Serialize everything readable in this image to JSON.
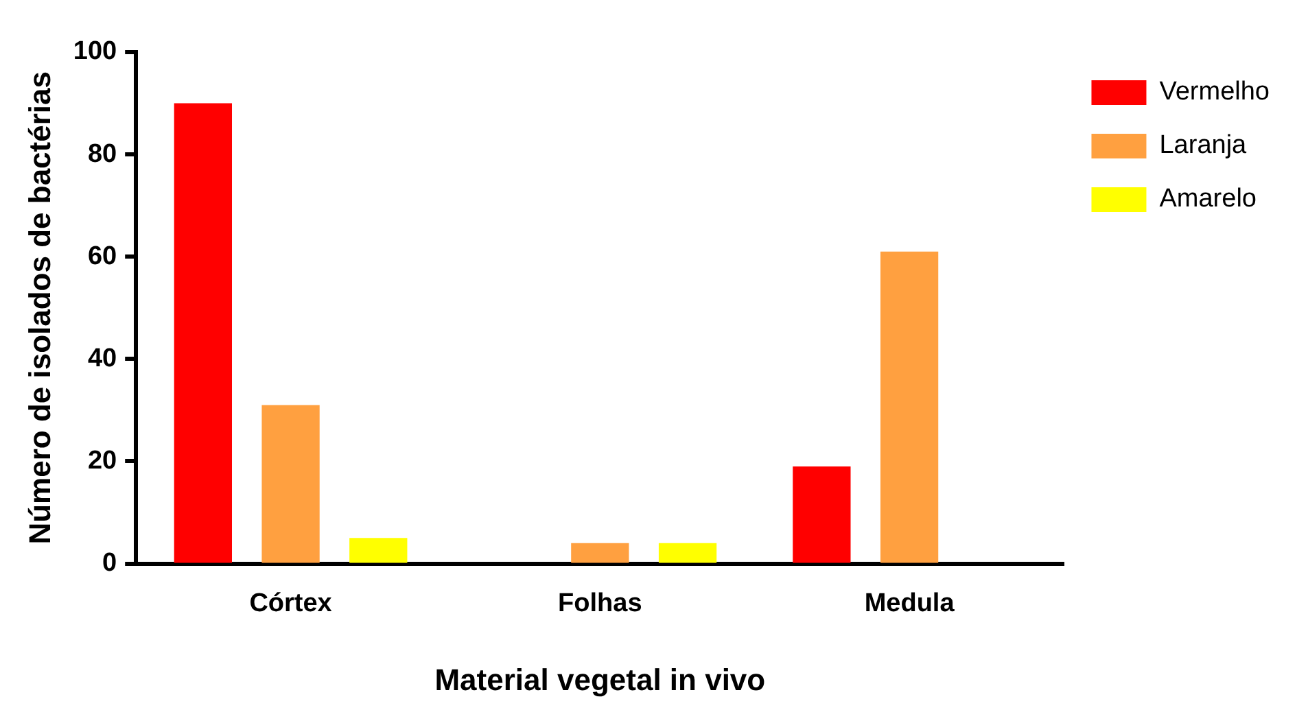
{
  "chart_data": {
    "type": "bar",
    "xlabel": "Material vegetal in vivo",
    "ylabel": "Número de isolados de bactérias",
    "categories": [
      "Córtex",
      "Folhas",
      "Medula"
    ],
    "series": [
      {
        "name": "Vermelho",
        "color": "#ff0000",
        "values": [
          90,
          0,
          19
        ]
      },
      {
        "name": "Laranja",
        "color": "#ffa040",
        "values": [
          31,
          4,
          61
        ]
      },
      {
        "name": "Amarelo",
        "color": "#ffff00",
        "values": [
          5,
          4,
          0
        ]
      }
    ],
    "ylim": [
      0,
      100
    ],
    "yticks": [
      0,
      20,
      40,
      60,
      80,
      100
    ],
    "grid": false,
    "legend": "top right"
  }
}
